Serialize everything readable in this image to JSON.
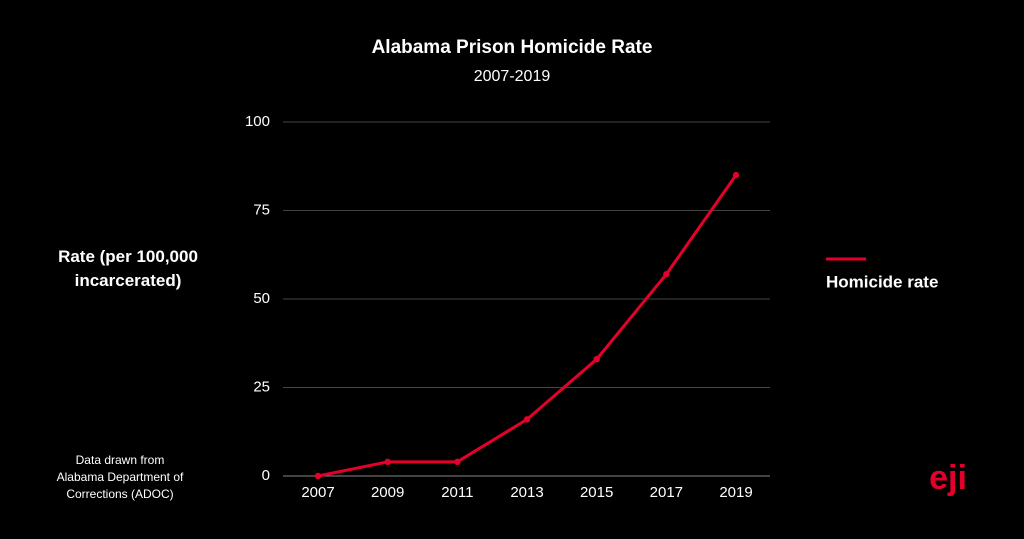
{
  "chart_data": {
    "type": "line",
    "title": "Alabama Prison Homicide Rate",
    "subtitle": "2007-2019",
    "y_label": "Rate (per 100,000 incarcerated)",
    "source": "Data drawn from Alabama Department of Corrections (ADOC)",
    "categories": [
      "2007",
      "2009",
      "2011",
      "2013",
      "2015",
      "2017",
      "2019"
    ],
    "series": [
      {
        "name": "Homicide rate",
        "color": "#e4002b",
        "values": [
          0,
          4,
          4,
          16,
          33,
          57,
          85
        ]
      }
    ],
    "ylim": [
      0,
      100
    ],
    "yticks": [
      0,
      25,
      50,
      75,
      100
    ],
    "grid": true,
    "legend": "right"
  },
  "logo": "eji"
}
